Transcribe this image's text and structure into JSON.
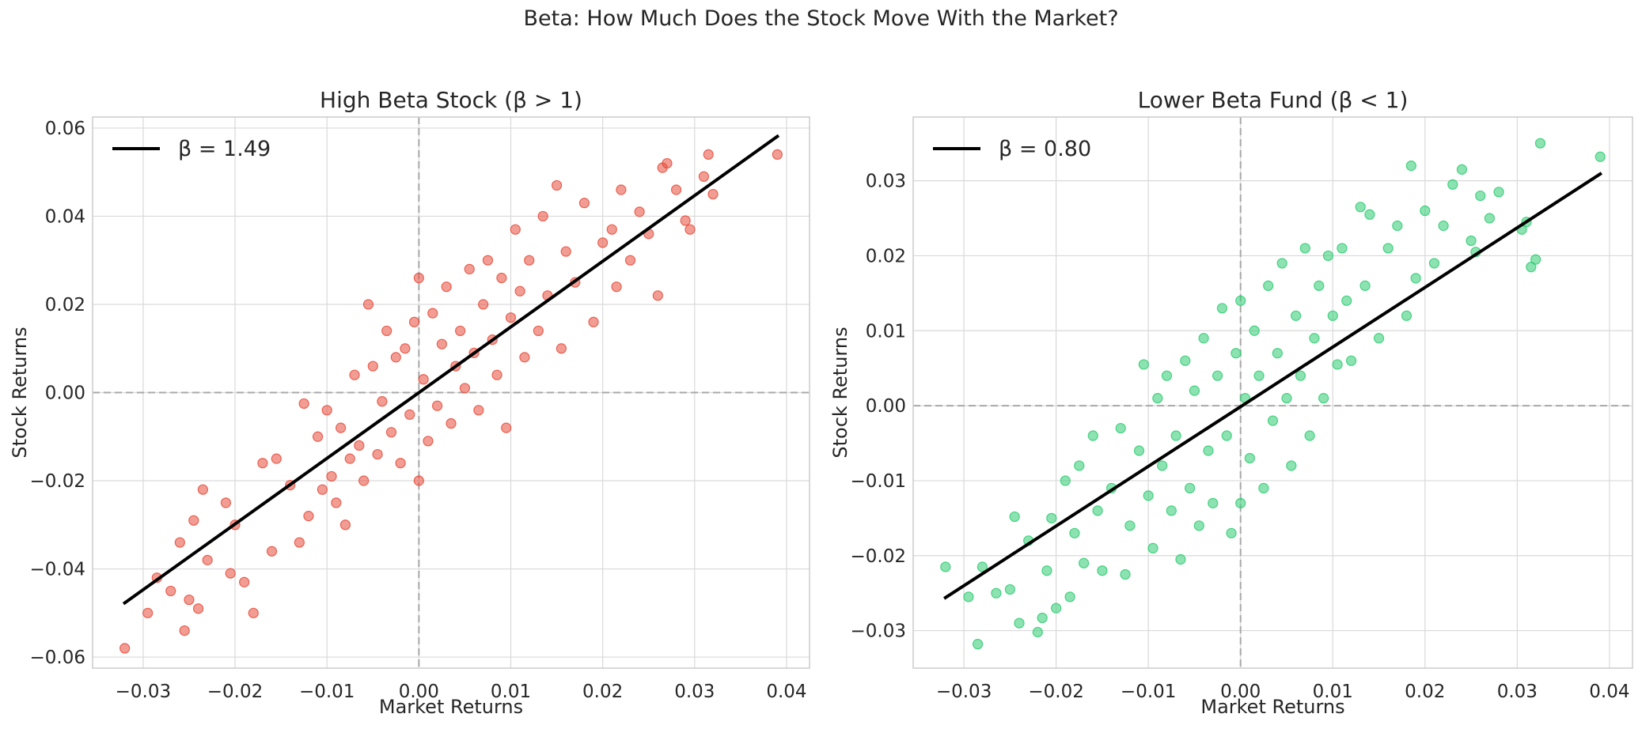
{
  "figure": {
    "title": "Beta: How Much Does the Stock Move With the Market?"
  },
  "chart_data": [
    {
      "type": "scatter",
      "title": "High Beta Stock (β > 1)",
      "xlabel": "Market Returns",
      "ylabel": "Stock Returns",
      "xlim": [
        -0.0355,
        0.0425
      ],
      "ylim": [
        -0.0625,
        0.0625
      ],
      "xticks": [
        -0.03,
        -0.02,
        -0.01,
        0.0,
        0.01,
        0.02,
        0.03,
        0.04
      ],
      "xtick_labels": [
        "−0.03",
        "−0.02",
        "−0.01",
        "0.00",
        "0.01",
        "0.02",
        "0.03",
        "0.04"
      ],
      "yticks": [
        -0.06,
        -0.04,
        -0.02,
        0.0,
        0.02,
        0.04,
        0.06
      ],
      "ytick_labels": [
        "−0.06",
        "−0.04",
        "−0.02",
        "0.00",
        "0.02",
        "0.04",
        "0.06"
      ],
      "grid": true,
      "legend_position": "top-left",
      "point_color": "#e74c3c",
      "points": [
        [
          -0.032,
          -0.058
        ],
        [
          -0.0295,
          -0.05
        ],
        [
          -0.0285,
          -0.042
        ],
        [
          -0.027,
          -0.045
        ],
        [
          -0.026,
          -0.034
        ],
        [
          -0.0255,
          -0.054
        ],
        [
          -0.025,
          -0.047
        ],
        [
          -0.0245,
          -0.029
        ],
        [
          -0.024,
          -0.049
        ],
        [
          -0.0235,
          -0.022
        ],
        [
          -0.023,
          -0.038
        ],
        [
          -0.021,
          -0.025
        ],
        [
          -0.0205,
          -0.041
        ],
        [
          -0.02,
          -0.03
        ],
        [
          -0.019,
          -0.043
        ],
        [
          -0.018,
          -0.05
        ],
        [
          -0.017,
          -0.016
        ],
        [
          -0.016,
          -0.036
        ],
        [
          -0.0155,
          -0.015
        ],
        [
          -0.014,
          -0.021
        ],
        [
          -0.013,
          -0.034
        ],
        [
          -0.0125,
          -0.0025
        ],
        [
          -0.012,
          -0.028
        ],
        [
          -0.011,
          -0.01
        ],
        [
          -0.0105,
          -0.022
        ],
        [
          -0.01,
          -0.004
        ],
        [
          -0.0095,
          -0.019
        ],
        [
          -0.009,
          -0.025
        ],
        [
          -0.0085,
          -0.008
        ],
        [
          -0.008,
          -0.03
        ],
        [
          -0.0075,
          -0.015
        ],
        [
          -0.007,
          0.004
        ],
        [
          -0.0065,
          -0.012
        ],
        [
          -0.006,
          -0.02
        ],
        [
          -0.0055,
          0.02
        ],
        [
          -0.005,
          0.006
        ],
        [
          -0.0045,
          -0.014
        ],
        [
          -0.004,
          -0.002
        ],
        [
          -0.0035,
          0.014
        ],
        [
          -0.003,
          -0.009
        ],
        [
          -0.0025,
          0.008
        ],
        [
          -0.002,
          -0.016
        ],
        [
          -0.0015,
          0.01
        ],
        [
          -0.001,
          -0.005
        ],
        [
          -0.0005,
          0.016
        ],
        [
          0.0,
          0.026
        ],
        [
          0.0,
          -0.02
        ],
        [
          0.0005,
          0.003
        ],
        [
          0.001,
          -0.011
        ],
        [
          0.0015,
          0.018
        ],
        [
          0.002,
          -0.003
        ],
        [
          0.0025,
          0.011
        ],
        [
          0.003,
          0.024
        ],
        [
          0.0035,
          -0.007
        ],
        [
          0.004,
          0.006
        ],
        [
          0.0045,
          0.014
        ],
        [
          0.005,
          0.001
        ],
        [
          0.0055,
          0.028
        ],
        [
          0.006,
          0.009
        ],
        [
          0.0065,
          -0.004
        ],
        [
          0.007,
          0.02
        ],
        [
          0.0075,
          0.03
        ],
        [
          0.008,
          0.012
        ],
        [
          0.0085,
          0.004
        ],
        [
          0.009,
          0.026
        ],
        [
          0.0095,
          -0.008
        ],
        [
          0.01,
          0.017
        ],
        [
          0.0105,
          0.037
        ],
        [
          0.011,
          0.023
        ],
        [
          0.0115,
          0.008
        ],
        [
          0.012,
          0.03
        ],
        [
          0.013,
          0.014
        ],
        [
          0.0135,
          0.04
        ],
        [
          0.014,
          0.022
        ],
        [
          0.015,
          0.047
        ],
        [
          0.0155,
          0.01
        ],
        [
          0.016,
          0.032
        ],
        [
          0.017,
          0.025
        ],
        [
          0.018,
          0.043
        ],
        [
          0.019,
          0.016
        ],
        [
          0.02,
          0.034
        ],
        [
          0.021,
          0.037
        ],
        [
          0.0215,
          0.024
        ],
        [
          0.022,
          0.046
        ],
        [
          0.023,
          0.03
        ],
        [
          0.024,
          0.041
        ],
        [
          0.025,
          0.036
        ],
        [
          0.026,
          0.022
        ],
        [
          0.0265,
          0.051
        ],
        [
          0.027,
          0.052
        ],
        [
          0.028,
          0.046
        ],
        [
          0.029,
          0.039
        ],
        [
          0.0295,
          0.037
        ],
        [
          0.031,
          0.049
        ],
        [
          0.0315,
          0.054
        ],
        [
          0.032,
          0.045
        ],
        [
          0.039,
          0.054
        ]
      ],
      "fit_line": {
        "label": "β = 1.49",
        "beta": 1.49,
        "x": [
          -0.032,
          0.039
        ],
        "y": [
          -0.0477,
          0.0581
        ],
        "color": "#000000"
      }
    },
    {
      "type": "scatter",
      "title": "Lower Beta Fund (β < 1)",
      "xlabel": "Market Returns",
      "ylabel": "Stock Returns",
      "xlim": [
        -0.0355,
        0.0425
      ],
      "ylim": [
        -0.035,
        0.0385
      ],
      "xticks": [
        -0.03,
        -0.02,
        -0.01,
        0.0,
        0.01,
        0.02,
        0.03,
        0.04
      ],
      "xtick_labels": [
        "−0.03",
        "−0.02",
        "−0.01",
        "0.00",
        "0.01",
        "0.02",
        "0.03",
        "0.04"
      ],
      "yticks": [
        -0.03,
        -0.02,
        -0.01,
        0.0,
        0.01,
        0.02,
        0.03
      ],
      "ytick_labels": [
        "−0.03",
        "−0.02",
        "−0.01",
        "0.00",
        "0.01",
        "0.02",
        "0.03"
      ],
      "grid": true,
      "legend_position": "top-left",
      "point_color": "#2ecc71",
      "points": [
        [
          -0.032,
          -0.0215
        ],
        [
          -0.0295,
          -0.0255
        ],
        [
          -0.0285,
          -0.0318
        ],
        [
          -0.028,
          -0.0215
        ],
        [
          -0.0265,
          -0.025
        ],
        [
          -0.025,
          -0.0245
        ],
        [
          -0.0245,
          -0.0148
        ],
        [
          -0.024,
          -0.029
        ],
        [
          -0.023,
          -0.018
        ],
        [
          -0.022,
          -0.0302
        ],
        [
          -0.0215,
          -0.0283
        ],
        [
          -0.021,
          -0.022
        ],
        [
          -0.0205,
          -0.015
        ],
        [
          -0.02,
          -0.027
        ],
        [
          -0.019,
          -0.01
        ],
        [
          -0.0185,
          -0.0255
        ],
        [
          -0.018,
          -0.017
        ],
        [
          -0.0175,
          -0.008
        ],
        [
          -0.017,
          -0.021
        ],
        [
          -0.016,
          -0.004
        ],
        [
          -0.0155,
          -0.014
        ],
        [
          -0.015,
          -0.022
        ],
        [
          -0.014,
          -0.011
        ],
        [
          -0.013,
          -0.003
        ],
        [
          -0.0125,
          -0.0225
        ],
        [
          -0.012,
          -0.016
        ],
        [
          -0.011,
          -0.006
        ],
        [
          -0.0105,
          0.0055
        ],
        [
          -0.01,
          -0.012
        ],
        [
          -0.0095,
          -0.019
        ],
        [
          -0.009,
          0.001
        ],
        [
          -0.0085,
          -0.008
        ],
        [
          -0.008,
          0.004
        ],
        [
          -0.0075,
          -0.014
        ],
        [
          -0.007,
          -0.004
        ],
        [
          -0.0065,
          -0.0205
        ],
        [
          -0.006,
          0.006
        ],
        [
          -0.0055,
          -0.011
        ],
        [
          -0.005,
          0.002
        ],
        [
          -0.0045,
          -0.016
        ],
        [
          -0.004,
          0.009
        ],
        [
          -0.0035,
          -0.006
        ],
        [
          -0.003,
          -0.013
        ],
        [
          -0.0025,
          0.004
        ],
        [
          -0.002,
          0.013
        ],
        [
          -0.0015,
          -0.004
        ],
        [
          -0.001,
          -0.017
        ],
        [
          -0.0005,
          0.007
        ],
        [
          0.0,
          0.014
        ],
        [
          0.0,
          -0.013
        ],
        [
          0.0005,
          0.001
        ],
        [
          0.001,
          -0.007
        ],
        [
          0.0015,
          0.01
        ],
        [
          0.002,
          0.004
        ],
        [
          0.0025,
          -0.011
        ],
        [
          0.003,
          0.016
        ],
        [
          0.0035,
          -0.002
        ],
        [
          0.004,
          0.007
        ],
        [
          0.0045,
          0.019
        ],
        [
          0.005,
          0.001
        ],
        [
          0.0055,
          -0.008
        ],
        [
          0.006,
          0.012
        ],
        [
          0.0065,
          0.004
        ],
        [
          0.007,
          0.021
        ],
        [
          0.0075,
          -0.004
        ],
        [
          0.008,
          0.009
        ],
        [
          0.0085,
          0.016
        ],
        [
          0.009,
          0.001
        ],
        [
          0.0095,
          0.02
        ],
        [
          0.01,
          0.012
        ],
        [
          0.0105,
          0.0055
        ],
        [
          0.011,
          0.021
        ],
        [
          0.0115,
          0.014
        ],
        [
          0.012,
          0.006
        ],
        [
          0.013,
          0.0265
        ],
        [
          0.0135,
          0.016
        ],
        [
          0.014,
          0.0255
        ],
        [
          0.015,
          0.009
        ],
        [
          0.016,
          0.021
        ],
        [
          0.017,
          0.024
        ],
        [
          0.018,
          0.012
        ],
        [
          0.0185,
          0.032
        ],
        [
          0.019,
          0.017
        ],
        [
          0.02,
          0.026
        ],
        [
          0.021,
          0.019
        ],
        [
          0.022,
          0.024
        ],
        [
          0.023,
          0.0295
        ],
        [
          0.024,
          0.0315
        ],
        [
          0.025,
          0.022
        ],
        [
          0.0255,
          0.0205
        ],
        [
          0.026,
          0.028
        ],
        [
          0.027,
          0.025
        ],
        [
          0.028,
          0.0285
        ],
        [
          0.0305,
          0.0235
        ],
        [
          0.031,
          0.0245
        ],
        [
          0.0315,
          0.0185
        ],
        [
          0.032,
          0.0195
        ],
        [
          0.0325,
          0.035
        ],
        [
          0.039,
          0.0332
        ]
      ],
      "fit_line": {
        "label": "β = 0.80",
        "beta": 0.8,
        "x": [
          -0.032,
          0.039
        ],
        "y": [
          -0.0256,
          0.0309
        ],
        "color": "#000000"
      }
    }
  ]
}
